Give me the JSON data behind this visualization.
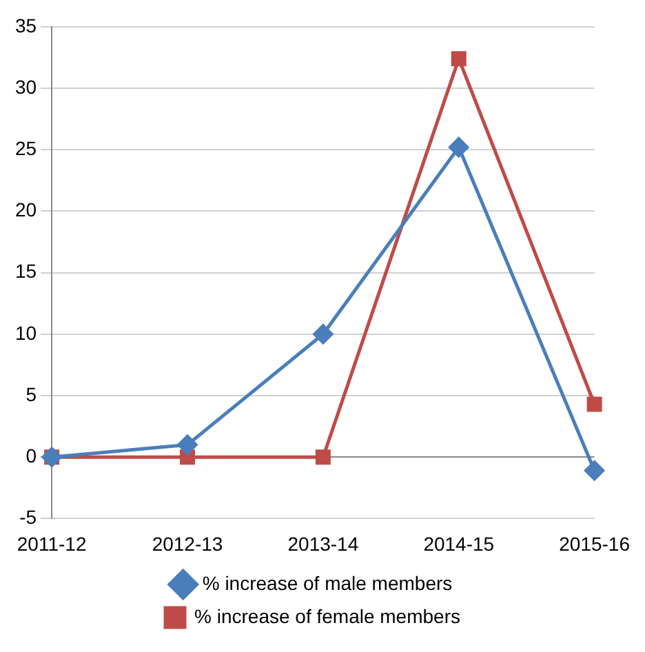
{
  "chart_data": {
    "type": "line",
    "categories": [
      "2011-12",
      "2012-13",
      "2013-14",
      "2014-15",
      "2015-16"
    ],
    "series": [
      {
        "name": "% increase of male members",
        "color": "#4a7ebb",
        "marker": "diamond",
        "values": [
          0,
          1,
          10,
          25.2,
          -1.1
        ]
      },
      {
        "name": "% increase of female members",
        "color": "#be4b48",
        "marker": "square",
        "values": [
          0,
          0,
          0,
          32.4,
          4.3
        ]
      }
    ],
    "ylim": [
      -5,
      35
    ],
    "yticks": [
      -5,
      0,
      5,
      10,
      15,
      20,
      25,
      30,
      35
    ],
    "grid": "y",
    "legend": "bottom",
    "line_style": "solid"
  }
}
